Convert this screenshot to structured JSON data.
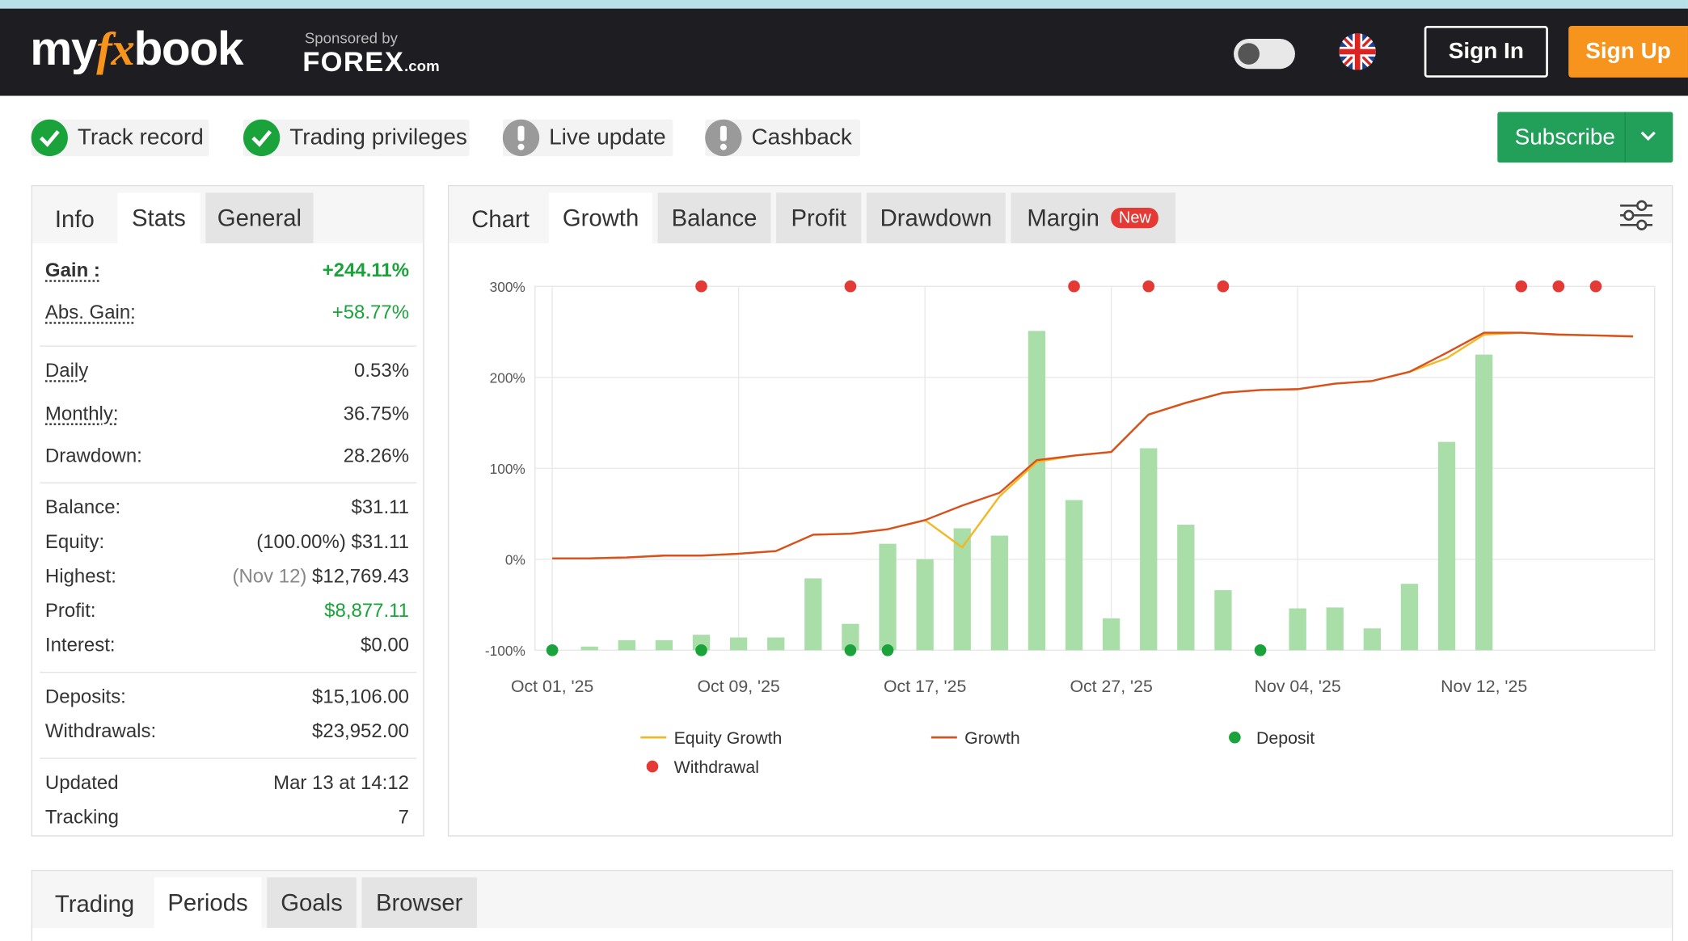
{
  "header": {
    "logo": [
      "my",
      "fx",
      "book"
    ],
    "sponsor_caption": "Sponsored by",
    "sponsor_name": "FOREX",
    "sponsor_suffix": ".com",
    "sign_in": "Sign In",
    "sign_up": "Sign Up"
  },
  "badges": [
    {
      "label": "Track record",
      "ok": true
    },
    {
      "label": "Trading privileges",
      "ok": true
    },
    {
      "label": "Live update",
      "ok": false
    },
    {
      "label": "Cashback",
      "ok": false
    }
  ],
  "subscribe": "Subscribe",
  "stats_panel": {
    "title": "Info",
    "tabs": [
      "Stats",
      "General"
    ],
    "active": 0,
    "groups": [
      [
        {
          "label": "Gain :",
          "value": "+244.11%",
          "tip": true,
          "bold": true,
          "color": "#1aa33a"
        },
        {
          "label": "Abs. Gain:",
          "value": "+58.77%",
          "tip": true,
          "color": "#1aa33a"
        }
      ],
      [
        {
          "label": "Daily",
          "value": "0.53%",
          "tip": true
        },
        {
          "label": "Monthly:",
          "value": "36.75%",
          "tip": true
        },
        {
          "label": "Drawdown:",
          "value": "28.26%"
        }
      ],
      [
        {
          "label": "Balance:",
          "value": "$31.11"
        },
        {
          "label": "Equity:",
          "note": "(100.00%)",
          "value": "$31.11"
        },
        {
          "label": "Highest:",
          "note": "(Nov 12)",
          "note_color": "#888",
          "value": "$12,769.43"
        },
        {
          "label": "Profit:",
          "value": "$8,877.11",
          "color": "#1aa33a"
        },
        {
          "label": "Interest:",
          "value": "$0.00"
        }
      ],
      [
        {
          "label": "Deposits:",
          "value": "$15,106.00"
        },
        {
          "label": "Withdrawals:",
          "value": "$23,952.00"
        }
      ],
      [
        {
          "label": "Updated",
          "value": "Mar 13 at 14:12"
        },
        {
          "label": "Tracking",
          "value": "7"
        }
      ]
    ]
  },
  "chart_panel": {
    "title": "Chart",
    "tabs": [
      "Growth",
      "Balance",
      "Profit",
      "Drawdown",
      "Margin"
    ],
    "active": 0,
    "new_badge": "New"
  },
  "bottom_panel": {
    "title": "Trading",
    "tabs": [
      "Periods",
      "Goals",
      "Browser"
    ],
    "active": 0
  },
  "chart_data": {
    "type": "line",
    "categories": [
      "Oct 01, '25",
      null,
      null,
      null,
      null,
      "Oct 09, '25",
      null,
      null,
      null,
      null,
      "Oct 17, '25",
      null,
      null,
      null,
      null,
      "Oct 27, '25",
      null,
      null,
      null,
      null,
      "Nov 04, '25",
      null,
      null,
      null,
      null,
      "Nov 12, '25",
      null,
      null,
      null,
      null
    ],
    "ylim": [
      -100,
      300
    ],
    "yticks": [
      {
        "value": -100,
        "label": "-100%"
      },
      {
        "value": 0,
        "label": "0%"
      },
      {
        "value": 100,
        "label": "100%"
      },
      {
        "value": 200,
        "label": "200%"
      },
      {
        "value": 300,
        "label": "300%"
      }
    ],
    "grid": true,
    "bars": {
      "color": "#a9dea9",
      "values": [
        null,
        -96,
        -89,
        -89,
        -83,
        -86,
        -86,
        -21,
        -71,
        17,
        0,
        34,
        26,
        251,
        65,
        -65,
        122,
        38,
        -34,
        null,
        -54,
        -53,
        -76,
        -27,
        129,
        225,
        null,
        null,
        null,
        null
      ]
    },
    "series": [
      {
        "name": "Equity Growth",
        "kind": "line",
        "color": "#f2b824",
        "values": [
          1,
          1,
          2,
          4,
          4,
          6,
          9,
          27,
          28,
          33,
          43,
          13,
          69,
          107,
          114,
          118,
          159,
          172,
          183,
          186,
          187,
          193,
          196,
          206,
          221,
          247,
          249,
          247,
          246,
          245
        ]
      },
      {
        "name": "Growth",
        "kind": "line",
        "color": "#d9501f",
        "values": [
          1,
          1,
          2,
          4,
          4,
          6,
          9,
          27,
          28,
          33,
          43,
          59,
          73,
          109,
          114,
          118,
          159,
          172,
          183,
          186,
          187,
          193,
          196,
          206,
          227,
          249,
          249,
          247,
          246,
          245
        ]
      },
      {
        "name": "Deposit",
        "kind": "marker",
        "color": "#1aa33a",
        "values": [
          -100,
          null,
          null,
          null,
          -100,
          null,
          null,
          null,
          -100,
          -100,
          null,
          null,
          null,
          null,
          null,
          null,
          null,
          null,
          null,
          -100,
          null,
          null,
          null,
          null,
          null,
          null,
          null,
          null,
          null,
          null
        ]
      },
      {
        "name": "Withdrawal",
        "kind": "marker",
        "color": "#e53935",
        "values": [
          null,
          null,
          null,
          null,
          300,
          null,
          null,
          null,
          300,
          null,
          null,
          null,
          null,
          null,
          300,
          null,
          300,
          null,
          300,
          null,
          null,
          null,
          null,
          null,
          null,
          null,
          300,
          300,
          300,
          null
        ]
      }
    ]
  }
}
